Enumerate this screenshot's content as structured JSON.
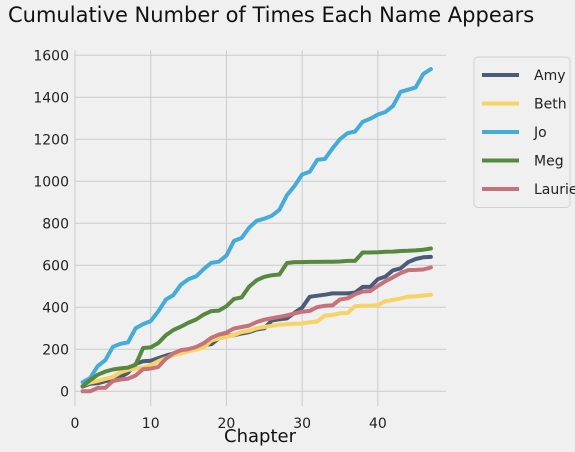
{
  "chart_data": {
    "type": "line",
    "title": "Cumulative Number of Times Each Name Appears",
    "xlabel": "Chapter",
    "ylabel": "",
    "xlim": [
      0,
      49
    ],
    "ylim": [
      -70,
      1625
    ],
    "xticks": [
      0,
      10,
      20,
      30,
      40
    ],
    "yticks": [
      0,
      200,
      400,
      600,
      800,
      1000,
      1200,
      1400,
      1600
    ],
    "grid": true,
    "legend_position": "outside-right",
    "x": [
      1,
      2,
      3,
      4,
      5,
      6,
      7,
      8,
      9,
      10,
      11,
      12,
      13,
      14,
      15,
      16,
      17,
      18,
      19,
      20,
      21,
      22,
      23,
      24,
      25,
      26,
      27,
      28,
      29,
      30,
      31,
      32,
      33,
      34,
      35,
      36,
      37,
      38,
      39,
      40,
      41,
      42,
      43,
      44,
      45,
      46,
      47
    ],
    "series": [
      {
        "name": "Amy",
        "color": "#4b5b78",
        "values": [
          23,
          36,
          38,
          48,
          57,
          68,
          88,
          130,
          143,
          145,
          158,
          170,
          180,
          190,
          198,
          205,
          222,
          224,
          253,
          264,
          267,
          275,
          282,
          294,
          300,
          337,
          343,
          347,
          374,
          398,
          450,
          455,
          460,
          466,
          466,
          466,
          470,
          497,
          497,
          534,
          546,
          576,
          585,
          615,
          630,
          638,
          640
        ]
      },
      {
        "name": "Beth",
        "color": "#f7d265",
        "values": [
          28,
          42,
          49,
          59,
          68,
          90,
          102,
          108,
          113,
          125,
          144,
          158,
          172,
          180,
          191,
          199,
          208,
          242,
          251,
          259,
          268,
          282,
          288,
          300,
          306,
          312,
          317,
          320,
          322,
          323,
          329,
          333,
          361,
          363,
          372,
          373,
          405,
          408,
          408,
          410,
          429,
          435,
          442,
          451,
          452,
          456,
          460
        ]
      },
      {
        "name": "Jo",
        "color": "#45abd8",
        "values": [
          44,
          63,
          120,
          148,
          212,
          226,
          233,
          300,
          320,
          334,
          381,
          437,
          458,
          508,
          534,
          547,
          582,
          612,
          617,
          646,
          716,
          730,
          779,
          812,
          822,
          836,
          864,
          934,
          978,
          1032,
          1045,
          1102,
          1106,
          1156,
          1201,
          1229,
          1237,
          1283,
          1298,
          1318,
          1330,
          1359,
          1426,
          1436,
          1447,
          1511,
          1534
        ]
      },
      {
        "name": "Meg",
        "color": "#57883f",
        "values": [
          24,
          53,
          79,
          94,
          104,
          109,
          113,
          126,
          206,
          209,
          230,
          267,
          292,
          308,
          327,
          342,
          365,
          382,
          384,
          405,
          440,
          447,
          498,
          529,
          545,
          553,
          556,
          611,
          615,
          615,
          616,
          616,
          617,
          617,
          618,
          621,
          621,
          661,
          661,
          662,
          664,
          665,
          668,
          669,
          671,
          674,
          680
        ]
      },
      {
        "name": "Laurie",
        "color": "#c6727a",
        "values": [
          0,
          0,
          16,
          16,
          49,
          56,
          60,
          75,
          105,
          108,
          116,
          155,
          181,
          196,
          201,
          211,
          229,
          255,
          270,
          280,
          299,
          306,
          313,
          330,
          341,
          348,
          354,
          362,
          371,
          379,
          383,
          401,
          407,
          409,
          437,
          443,
          462,
          475,
          477,
          502,
          524,
          543,
          563,
          577,
          578,
          580,
          590
        ]
      }
    ]
  }
}
